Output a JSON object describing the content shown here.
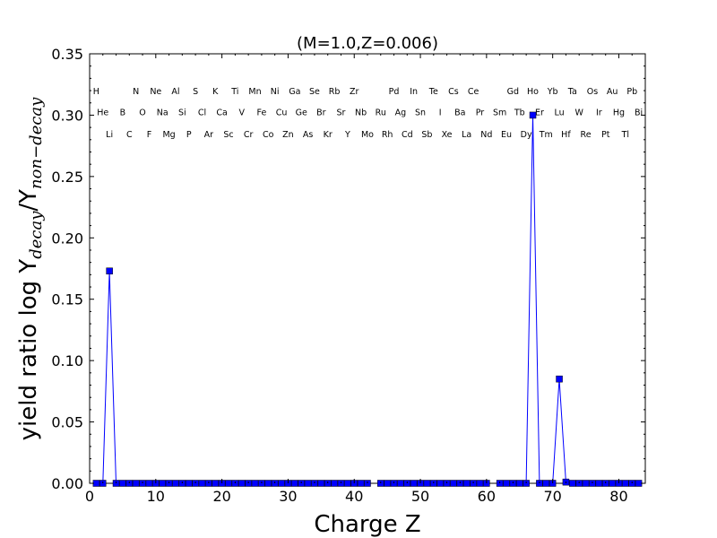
{
  "chart_data": {
    "type": "line",
    "title": "(M=1.0,Z=0.006)",
    "xlabel": "Charge Z",
    "ylabel_main": "yield ratio log Y",
    "ylabel_sub1": "decay",
    "ylabel_sep": "/Y",
    "ylabel_sub2": "non−decay",
    "xlim": [
      0,
      84
    ],
    "ylim": [
      0,
      0.35
    ],
    "xticks": [
      0,
      10,
      20,
      30,
      40,
      50,
      60,
      70,
      80
    ],
    "yticks": [
      0.0,
      0.05,
      0.1,
      0.15,
      0.2,
      0.25,
      0.3,
      0.35
    ],
    "ytick_labels": [
      "0.00",
      "0.05",
      "0.10",
      "0.15",
      "0.20",
      "0.25",
      "0.30",
      "0.35"
    ],
    "grid": false,
    "series_color": "#0000ff",
    "segments": [
      {
        "x": [
          1,
          2,
          3,
          4,
          5,
          6,
          7,
          8,
          9,
          10,
          11,
          12,
          13,
          14,
          15,
          16,
          17,
          18,
          19,
          20,
          21,
          22,
          23,
          24,
          25,
          26,
          27,
          28,
          29,
          30,
          31,
          32,
          33,
          34,
          35,
          36,
          37,
          38,
          39,
          40,
          41,
          42
        ],
        "y": [
          0.0,
          0.0,
          0.173,
          0.0,
          0.0,
          0.0,
          0.0,
          0.0,
          0.0,
          0.0,
          0.0,
          0.0,
          0.0,
          0.0,
          0.0,
          0.0,
          0.0,
          0.0,
          0.0,
          0.0,
          0.0,
          0.0,
          0.0,
          0.0,
          0.0,
          0.0,
          0.0,
          0.0,
          0.0,
          0.0,
          0.0,
          0.0,
          0.0,
          0.0,
          0.0,
          0.0,
          0.0,
          0.0,
          0.0,
          0.0,
          0.0,
          0.0
        ]
      },
      {
        "x": [
          44,
          45,
          46,
          47,
          48,
          49,
          50,
          51,
          52,
          53,
          54,
          55,
          56,
          57,
          58,
          59,
          60
        ],
        "y": [
          0.0,
          0.0,
          0.0,
          0.0,
          0.0,
          0.0,
          0.0,
          0.0,
          0.0,
          0.0,
          0.0,
          0.0,
          0.0,
          0.0,
          0.0,
          0.0,
          0.0
        ]
      },
      {
        "x": [
          62,
          63,
          64,
          65,
          66,
          67,
          68,
          69,
          70,
          71,
          72,
          73,
          74,
          75,
          76,
          77,
          78,
          79,
          80,
          81,
          82,
          83
        ],
        "y": [
          0.0,
          0.0,
          0.0,
          0.0,
          0.0,
          0.3,
          0.0,
          0.0,
          0.0,
          0.085,
          0.001,
          0.0,
          0.0,
          0.0,
          0.0,
          0.0,
          0.0,
          0.0,
          0.0,
          0.0,
          0.0,
          0.0
        ]
      }
    ],
    "element_rows_y": [
      0.317,
      0.3,
      0.282
    ],
    "elements": [
      {
        "z": 1,
        "s": "H"
      },
      {
        "z": 2,
        "s": "He"
      },
      {
        "z": 3,
        "s": "Li"
      },
      {
        "z": 5,
        "s": "B"
      },
      {
        "z": 6,
        "s": "C"
      },
      {
        "z": 7,
        "s": "N"
      },
      {
        "z": 8,
        "s": "O"
      },
      {
        "z": 9,
        "s": "F"
      },
      {
        "z": 10,
        "s": "Ne"
      },
      {
        "z": 11,
        "s": "Na"
      },
      {
        "z": 12,
        "s": "Mg"
      },
      {
        "z": 13,
        "s": "Al"
      },
      {
        "z": 14,
        "s": "Si"
      },
      {
        "z": 15,
        "s": "P"
      },
      {
        "z": 16,
        "s": "S"
      },
      {
        "z": 17,
        "s": "Cl"
      },
      {
        "z": 18,
        "s": "Ar"
      },
      {
        "z": 19,
        "s": "K"
      },
      {
        "z": 20,
        "s": "Ca"
      },
      {
        "z": 21,
        "s": "Sc"
      },
      {
        "z": 22,
        "s": "Ti"
      },
      {
        "z": 23,
        "s": "V"
      },
      {
        "z": 24,
        "s": "Cr"
      },
      {
        "z": 25,
        "s": "Mn"
      },
      {
        "z": 26,
        "s": "Fe"
      },
      {
        "z": 27,
        "s": "Co"
      },
      {
        "z": 28,
        "s": "Ni"
      },
      {
        "z": 29,
        "s": "Cu"
      },
      {
        "z": 30,
        "s": "Zn"
      },
      {
        "z": 31,
        "s": "Ga"
      },
      {
        "z": 32,
        "s": "Ge"
      },
      {
        "z": 33,
        "s": "As"
      },
      {
        "z": 34,
        "s": "Se"
      },
      {
        "z": 35,
        "s": "Br"
      },
      {
        "z": 36,
        "s": "Kr"
      },
      {
        "z": 37,
        "s": "Rb"
      },
      {
        "z": 38,
        "s": "Sr"
      },
      {
        "z": 39,
        "s": "Y"
      },
      {
        "z": 40,
        "s": "Zr"
      },
      {
        "z": 41,
        "s": "Nb"
      },
      {
        "z": 42,
        "s": "Mo"
      },
      {
        "z": 44,
        "s": "Ru"
      },
      {
        "z": 45,
        "s": "Rh"
      },
      {
        "z": 46,
        "s": "Pd"
      },
      {
        "z": 47,
        "s": "Ag"
      },
      {
        "z": 48,
        "s": "Cd"
      },
      {
        "z": 49,
        "s": "In"
      },
      {
        "z": 50,
        "s": "Sn"
      },
      {
        "z": 51,
        "s": "Sb"
      },
      {
        "z": 52,
        "s": "Te"
      },
      {
        "z": 53,
        "s": "I"
      },
      {
        "z": 54,
        "s": "Xe"
      },
      {
        "z": 55,
        "s": "Cs"
      },
      {
        "z": 56,
        "s": "Ba"
      },
      {
        "z": 57,
        "s": "La"
      },
      {
        "z": 58,
        "s": "Ce"
      },
      {
        "z": 59,
        "s": "Pr"
      },
      {
        "z": 60,
        "s": "Nd"
      },
      {
        "z": 62,
        "s": "Sm"
      },
      {
        "z": 63,
        "s": "Eu"
      },
      {
        "z": 64,
        "s": "Gd"
      },
      {
        "z": 65,
        "s": "Tb"
      },
      {
        "z": 66,
        "s": "Dy"
      },
      {
        "z": 67,
        "s": "Ho"
      },
      {
        "z": 68,
        "s": "Er"
      },
      {
        "z": 69,
        "s": "Tm"
      },
      {
        "z": 70,
        "s": "Yb"
      },
      {
        "z": 71,
        "s": "Lu"
      },
      {
        "z": 72,
        "s": "Hf"
      },
      {
        "z": 73,
        "s": "Ta"
      },
      {
        "z": 74,
        "s": "W"
      },
      {
        "z": 75,
        "s": "Re"
      },
      {
        "z": 76,
        "s": "Os"
      },
      {
        "z": 77,
        "s": "Ir"
      },
      {
        "z": 78,
        "s": "Pt"
      },
      {
        "z": 79,
        "s": "Au"
      },
      {
        "z": 80,
        "s": "Hg"
      },
      {
        "z": 81,
        "s": "Tl"
      },
      {
        "z": 82,
        "s": "Pb"
      },
      {
        "z": 83,
        "s": "Bi"
      }
    ]
  }
}
